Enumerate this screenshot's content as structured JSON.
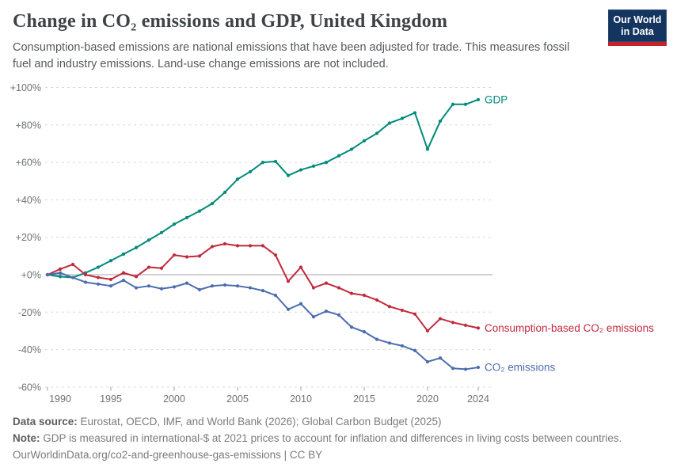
{
  "header": {
    "title": "Change in CO₂ emissions and GDP, United Kingdom",
    "subtitle": "Consumption-based emissions are national emissions that have been adjusted for trade. This measures fossil fuel and industry emissions. Land-use change emissions are not included.",
    "logo": {
      "line1": "Our World",
      "line2": "in Data"
    }
  },
  "chart_data": {
    "type": "line",
    "title": "Change in CO₂ emissions and GDP, United Kingdom",
    "x_label": "Year",
    "y_format": "percent_change_since_1990",
    "ylim": [
      -60,
      100
    ],
    "grid": "horizontal-dashed",
    "zero_line": true,
    "legend_position": "end-of-line-labels",
    "x": [
      1990,
      1991,
      1992,
      1993,
      1994,
      1995,
      1996,
      1997,
      1998,
      1999,
      2000,
      2001,
      2002,
      2003,
      2004,
      2005,
      2006,
      2007,
      2008,
      2009,
      2010,
      2011,
      2012,
      2013,
      2014,
      2015,
      2016,
      2017,
      2018,
      2019,
      2020,
      2021,
      2022,
      2023,
      2024
    ],
    "x_ticks": [
      1990,
      1995,
      2000,
      2005,
      2010,
      2015,
      2020,
      2024
    ],
    "y_ticks": [
      100,
      80,
      60,
      40,
      20,
      0,
      -20,
      -40,
      -60
    ],
    "series": [
      {
        "name": "GDP",
        "color": "#008A7A",
        "values": [
          0,
          -1,
          -1.5,
          1,
          4,
          7.5,
          11,
          14.5,
          18.5,
          22.5,
          27,
          30.5,
          34,
          38,
          44,
          51,
          55,
          60,
          60.5,
          53,
          56,
          58,
          60,
          63.5,
          67,
          71.5,
          75.5,
          81,
          83.5,
          86.5,
          67,
          82,
          91,
          91,
          93.5
        ]
      },
      {
        "name": "Consumption-based CO₂ emissions",
        "color": "#C2293C",
        "values": [
          0,
          3,
          5.5,
          0,
          -1.5,
          -2.5,
          1,
          -1,
          4,
          3.5,
          10.5,
          9.5,
          10,
          15,
          16.5,
          15.5,
          15.5,
          15.5,
          10.5,
          -3.5,
          4,
          -7,
          -4.5,
          -7,
          -10,
          -11,
          -13.5,
          -17,
          -19,
          -21,
          -30,
          -23.5,
          -25.5,
          -27,
          -28.5
        ]
      },
      {
        "name": "CO₂ emissions",
        "color": "#4B6CAF",
        "values": [
          0,
          1,
          -1.5,
          -4,
          -5,
          -6,
          -3,
          -7,
          -6,
          -7.5,
          -6.5,
          -4.5,
          -8,
          -6,
          -5.5,
          -6,
          -7,
          -8.5,
          -11,
          -18.5,
          -15.5,
          -22.5,
          -19.5,
          -21.5,
          -28,
          -30.5,
          -34.5,
          -36.5,
          -38,
          -40.5,
          -46.5,
          -44.5,
          -50,
          -50.5,
          -49.5
        ]
      }
    ],
    "colors": {
      "grid": "#D9D9D9",
      "zero_line": "#A7A7A7",
      "tick_text": "#6e7173"
    }
  },
  "footer": {
    "source_label": "Data source:",
    "source_text": " Eurostat, OECD, IMF, and World Bank (2026); Global Carbon Budget (2025)",
    "note_label": "Note:",
    "note_text": " GDP is measured in international-$ at 2021 prices to account for inflation and differences in living costs between countries.",
    "url_line": "OurWorldinData.org/co2-and-greenhouse-gas-emissions | CC BY"
  }
}
